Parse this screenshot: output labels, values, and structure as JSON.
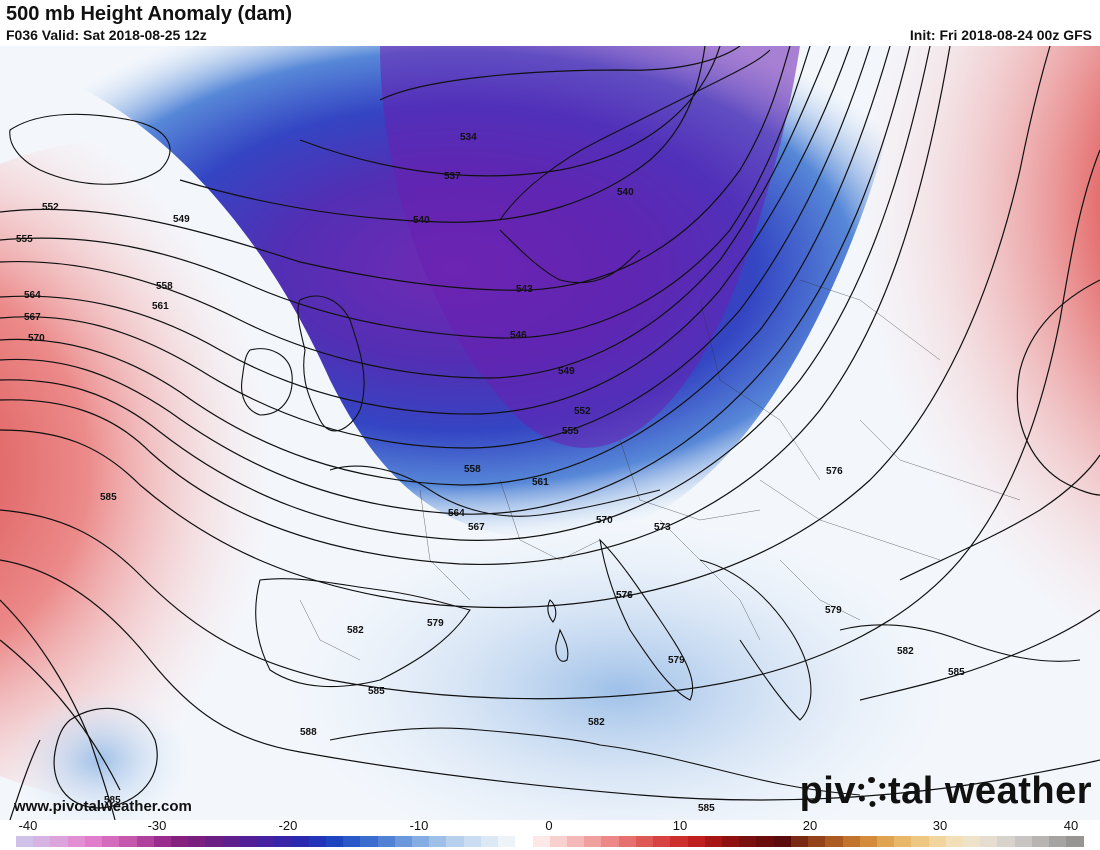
{
  "header": {
    "title": "500 mb Height Anomaly (dam)",
    "valid": "F036 Valid: Sat 2018-08-25 12z",
    "init": "Init: Fri 2018-08-24 00z GFS"
  },
  "footer": {
    "website": "www.pivotalweather.com",
    "brand_left": "piv",
    "brand_right": "tal weather"
  },
  "colorbar": {
    "tick_labels": [
      "-40",
      "-30",
      "-20",
      "-10",
      "0",
      "10",
      "20",
      "30",
      "40"
    ],
    "colors": [
      "#cfc1e8",
      "#d6b3e3",
      "#dca4dd",
      "#e28fd4",
      "#e07ecb",
      "#d46bbd",
      "#c557ad",
      "#b0429d",
      "#9a2c8e",
      "#86207f",
      "#7a1e80",
      "#6d1e85",
      "#5f1f8d",
      "#521f96",
      "#45229f",
      "#3824a8",
      "#2b28b0",
      "#2234b8",
      "#1e44c0",
      "#2a58c8",
      "#3b6dcf",
      "#5182d6",
      "#6b98dd",
      "#85ade3",
      "#9ec0e8",
      "#b6d0ee",
      "#cbddf2",
      "#dde8f6",
      "#eef3fa",
      "#ffffff",
      "#fde8e8",
      "#f9d0d0",
      "#f5b8b8",
      "#f1a0a0",
      "#ec8888",
      "#e67070",
      "#df5858",
      "#d74242",
      "#cd2e2e",
      "#c01f1f",
      "#a81515",
      "#8f1010",
      "#7a0f0f",
      "#6a0c0c",
      "#5b0b0b",
      "#7a2a12",
      "#93421a",
      "#ab5a22",
      "#c2732d",
      "#d48b3c",
      "#e0a350",
      "#e8b768",
      "#eec882",
      "#f1d59d",
      "#f2deb7",
      "#eee2c8",
      "#e6ddd0",
      "#d8d2cc",
      "#c8c4c1",
      "#b7b4b2",
      "#a6a4a3",
      "#969594"
    ]
  },
  "map": {
    "contour_labels": [
      "534",
      "537",
      "540",
      "540",
      "543",
      "546",
      "549",
      "549",
      "552",
      "552",
      "555",
      "555",
      "558",
      "558",
      "561",
      "561",
      "564",
      "564",
      "567",
      "567",
      "570",
      "570",
      "573",
      "576",
      "576",
      "576",
      "579",
      "579",
      "579",
      "582",
      "582",
      "582",
      "585",
      "585",
      "585",
      "585",
      "585",
      "588"
    ]
  }
}
